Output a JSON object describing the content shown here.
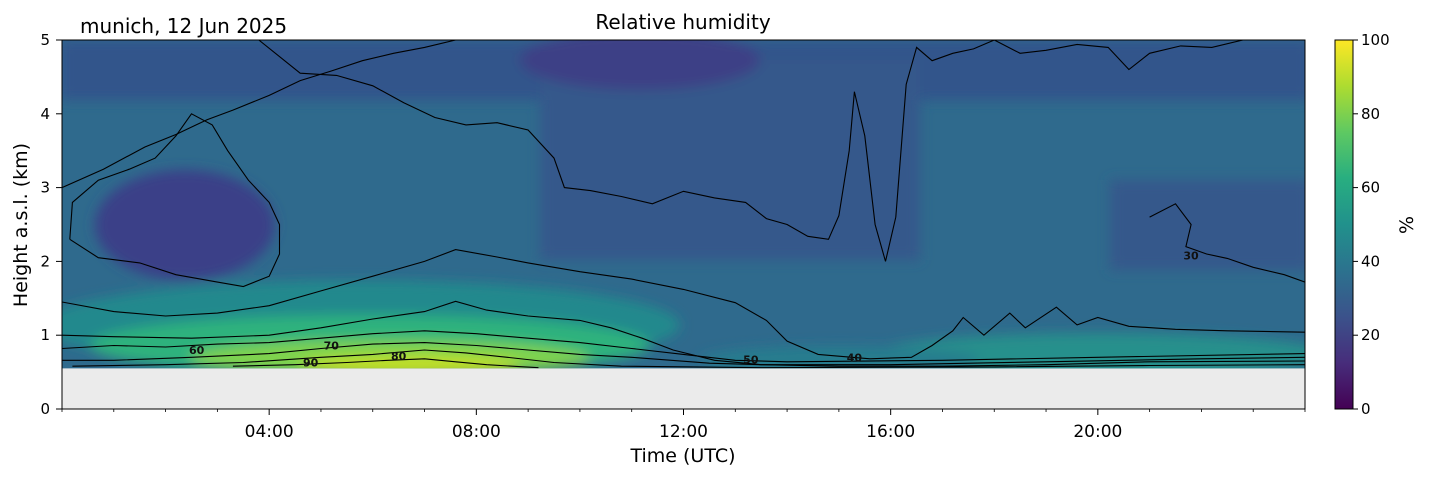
{
  "chart_data": {
    "type": "heatmap",
    "title": "Relative humidity",
    "subtitle": "munich, 12 Jun 2025",
    "xlabel": "Time (UTC)",
    "ylabel": "Height a.s.l. (km)",
    "xlim_hours": [
      0,
      24
    ],
    "ylim_km": [
      0,
      5
    ],
    "x_ticks": [
      {
        "hour": 4,
        "label": "04:00"
      },
      {
        "hour": 8,
        "label": "08:00"
      },
      {
        "hour": 12,
        "label": "12:00"
      },
      {
        "hour": 16,
        "label": "16:00"
      },
      {
        "hour": 20,
        "label": "20:00"
      }
    ],
    "y_ticks": [
      {
        "value": 0,
        "label": "0"
      },
      {
        "value": 1,
        "label": "1"
      },
      {
        "value": 2,
        "label": "2"
      },
      {
        "value": 3,
        "label": "3"
      },
      {
        "value": 4,
        "label": "4"
      },
      {
        "value": 5,
        "label": "5"
      }
    ],
    "colorbar": {
      "label": "%",
      "colormap": "viridis",
      "range": [
        0,
        100
      ],
      "ticks": [
        {
          "value": 0,
          "label": "0"
        },
        {
          "value": 20,
          "label": "20"
        },
        {
          "value": 40,
          "label": "40"
        },
        {
          "value": 60,
          "label": "60"
        },
        {
          "value": 80,
          "label": "80"
        },
        {
          "value": 100,
          "label": "100"
        }
      ]
    },
    "no_data_below_km": 0.55,
    "no_data_color": "#ebebeb",
    "contour_color": "#000000",
    "contours": [
      {
        "level": 90,
        "label": "90",
        "label_at": [
          4.8,
          0.63
        ],
        "points": [
          [
            3.3,
            0.58
          ],
          [
            4.5,
            0.6
          ],
          [
            5.5,
            0.63
          ],
          [
            6.3,
            0.66
          ],
          [
            7.0,
            0.68
          ],
          [
            7.6,
            0.64
          ],
          [
            8.2,
            0.6
          ],
          [
            9.2,
            0.56
          ]
        ]
      },
      {
        "level": 80,
        "label": "80",
        "label_at": [
          6.5,
          0.72
        ],
        "points": [
          [
            0.2,
            0.58
          ],
          [
            2.0,
            0.6
          ],
          [
            3.5,
            0.63
          ],
          [
            5.0,
            0.7
          ],
          [
            6.0,
            0.74
          ],
          [
            7.0,
            0.8
          ],
          [
            7.8,
            0.76
          ],
          [
            8.6,
            0.7
          ],
          [
            9.5,
            0.63
          ],
          [
            10.8,
            0.58
          ],
          [
            13.5,
            0.56
          ],
          [
            18,
            0.57
          ],
          [
            21,
            0.59
          ],
          [
            24,
            0.6
          ]
        ]
      },
      {
        "level": 70,
        "label": "70",
        "label_at": [
          5.2,
          0.86
        ],
        "points": [
          [
            0,
            0.66
          ],
          [
            1.0,
            0.66
          ],
          [
            2.5,
            0.7
          ],
          [
            4.0,
            0.75
          ],
          [
            5.0,
            0.82
          ],
          [
            6.0,
            0.88
          ],
          [
            7.0,
            0.9
          ],
          [
            8.0,
            0.86
          ],
          [
            9.0,
            0.8
          ],
          [
            10.0,
            0.74
          ],
          [
            11.0,
            0.7
          ],
          [
            12.5,
            0.62
          ],
          [
            13.5,
            0.6
          ],
          [
            16,
            0.6
          ],
          [
            19,
            0.64
          ],
          [
            22,
            0.68
          ],
          [
            24,
            0.7
          ]
        ]
      },
      {
        "level": 60,
        "label": "60",
        "label_at": [
          2.6,
          0.8
        ],
        "points": [
          [
            0,
            0.82
          ],
          [
            1.0,
            0.86
          ],
          [
            2.0,
            0.84
          ],
          [
            3.0,
            0.88
          ],
          [
            4.0,
            0.9
          ],
          [
            5.0,
            0.96
          ],
          [
            6.0,
            1.02
          ],
          [
            7.0,
            1.06
          ],
          [
            8.0,
            1.02
          ],
          [
            9.0,
            0.96
          ],
          [
            10.0,
            0.9
          ],
          [
            11.0,
            0.82
          ],
          [
            12.0,
            0.74
          ],
          [
            13.0,
            0.66
          ],
          [
            14,
            0.64
          ],
          [
            17,
            0.66
          ],
          [
            20,
            0.7
          ],
          [
            24,
            0.75
          ]
        ]
      },
      {
        "level": 50,
        "label": "50",
        "label_at": [
          13.3,
          0.67
        ],
        "points": [
          [
            0,
            1.0
          ],
          [
            1.0,
            0.98
          ],
          [
            2.5,
            0.96
          ],
          [
            4.0,
            1.0
          ],
          [
            5.0,
            1.1
          ],
          [
            6.0,
            1.22
          ],
          [
            7.0,
            1.32
          ],
          [
            7.6,
            1.46
          ],
          [
            8.2,
            1.34
          ],
          [
            9.0,
            1.26
          ],
          [
            10.0,
            1.2
          ],
          [
            10.6,
            1.1
          ],
          [
            11.2,
            0.96
          ],
          [
            11.8,
            0.8
          ],
          [
            12.6,
            0.66
          ],
          [
            13.5,
            0.6
          ],
          [
            15,
            0.58
          ],
          [
            17,
            0.58
          ],
          [
            19,
            0.6
          ],
          [
            21,
            0.64
          ],
          [
            24,
            0.65
          ]
        ]
      },
      {
        "level": 40,
        "label": "40",
        "label_at": [
          15.3,
          0.7
        ],
        "points": [
          [
            0,
            1.45
          ],
          [
            1.0,
            1.32
          ],
          [
            2.0,
            1.26
          ],
          [
            3.0,
            1.3
          ],
          [
            4.0,
            1.4
          ],
          [
            5.0,
            1.6
          ],
          [
            6.0,
            1.8
          ],
          [
            7.0,
            2.0
          ],
          [
            7.6,
            2.16
          ],
          [
            8.4,
            2.06
          ],
          [
            9.0,
            1.98
          ],
          [
            10.0,
            1.86
          ],
          [
            11.0,
            1.76
          ],
          [
            12.0,
            1.62
          ],
          [
            13.0,
            1.44
          ],
          [
            13.6,
            1.2
          ],
          [
            14.0,
            0.92
          ],
          [
            14.6,
            0.74
          ],
          [
            15.6,
            0.68
          ],
          [
            16.4,
            0.7
          ],
          [
            16.8,
            0.86
          ],
          [
            17.2,
            1.06
          ],
          [
            17.4,
            1.24
          ],
          [
            17.8,
            1.0
          ],
          [
            18.3,
            1.3
          ],
          [
            18.6,
            1.1
          ],
          [
            19.2,
            1.38
          ],
          [
            19.6,
            1.14
          ],
          [
            20,
            1.24
          ],
          [
            20.6,
            1.12
          ],
          [
            21.5,
            1.08
          ],
          [
            22.5,
            1.06
          ],
          [
            24,
            1.04
          ]
        ]
      },
      {
        "level": 30,
        "label": "30",
        "label_at": [
          21.8,
          2.08
        ],
        "points": [
          [
            21.0,
            2.6
          ],
          [
            21.5,
            2.78
          ],
          [
            21.8,
            2.5
          ],
          [
            21.7,
            2.2
          ],
          [
            22.1,
            2.1
          ],
          [
            22.5,
            2.04
          ],
          [
            23.0,
            1.92
          ],
          [
            23.6,
            1.82
          ],
          [
            24,
            1.72
          ]
        ]
      },
      {
        "level": 30,
        "label": "",
        "points": [
          [
            0.15,
            2.3
          ],
          [
            0.7,
            2.05
          ],
          [
            1.5,
            1.98
          ],
          [
            2.2,
            1.82
          ],
          [
            3.0,
            1.72
          ],
          [
            3.5,
            1.66
          ],
          [
            4.0,
            1.8
          ],
          [
            4.2,
            2.1
          ],
          [
            4.2,
            2.5
          ],
          [
            4.0,
            2.8
          ],
          [
            3.6,
            3.1
          ],
          [
            3.2,
            3.5
          ],
          [
            2.9,
            3.85
          ],
          [
            2.5,
            4.0
          ],
          [
            2.2,
            3.7
          ],
          [
            1.8,
            3.4
          ],
          [
            1.3,
            3.25
          ],
          [
            0.7,
            3.1
          ],
          [
            0.2,
            2.8
          ],
          [
            0.15,
            2.3
          ]
        ]
      },
      {
        "level": 30,
        "label": "",
        "points": [
          [
            0,
            3.0
          ],
          [
            0.8,
            3.25
          ],
          [
            1.6,
            3.55
          ],
          [
            2.2,
            3.72
          ],
          [
            2.8,
            3.92
          ],
          [
            3.3,
            4.05
          ],
          [
            4.0,
            4.25
          ],
          [
            4.6,
            4.45
          ],
          [
            5.2,
            4.58
          ],
          [
            5.8,
            4.72
          ],
          [
            6.4,
            4.82
          ],
          [
            7.0,
            4.9
          ],
          [
            7.6,
            5.0
          ]
        ]
      },
      {
        "level": 30,
        "label": "",
        "points": [
          [
            3.8,
            5.0
          ],
          [
            4.6,
            4.55
          ],
          [
            5.3,
            4.52
          ],
          [
            6.0,
            4.38
          ],
          [
            6.6,
            4.15
          ],
          [
            7.2,
            3.95
          ],
          [
            7.8,
            3.85
          ],
          [
            8.4,
            3.88
          ],
          [
            9.0,
            3.78
          ],
          [
            9.5,
            3.4
          ],
          [
            9.7,
            3.0
          ],
          [
            10.2,
            2.96
          ],
          [
            10.8,
            2.88
          ],
          [
            11.4,
            2.78
          ],
          [
            12.0,
            2.95
          ],
          [
            12.6,
            2.86
          ],
          [
            13.2,
            2.8
          ],
          [
            13.6,
            2.58
          ],
          [
            14.0,
            2.5
          ],
          [
            14.4,
            2.34
          ],
          [
            14.8,
            2.3
          ],
          [
            15.0,
            2.62
          ],
          [
            15.2,
            3.5
          ],
          [
            15.3,
            4.3
          ],
          [
            15.5,
            3.7
          ],
          [
            15.7,
            2.5
          ],
          [
            15.9,
            2.0
          ],
          [
            16.1,
            2.6
          ],
          [
            16.2,
            3.5
          ],
          [
            16.3,
            4.4
          ],
          [
            16.5,
            4.9
          ],
          [
            16.8,
            4.72
          ],
          [
            17.2,
            4.82
          ],
          [
            17.6,
            4.88
          ],
          [
            18.0,
            5.0
          ]
        ]
      },
      {
        "level": 30,
        "label": "",
        "points": [
          [
            18.0,
            5.0
          ],
          [
            18.5,
            4.82
          ],
          [
            19.0,
            4.86
          ],
          [
            19.6,
            4.94
          ],
          [
            20.2,
            4.9
          ],
          [
            20.6,
            4.6
          ],
          [
            21.0,
            4.82
          ],
          [
            21.6,
            4.92
          ],
          [
            22.2,
            4.9
          ],
          [
            22.8,
            5.0
          ]
        ]
      }
    ]
  }
}
